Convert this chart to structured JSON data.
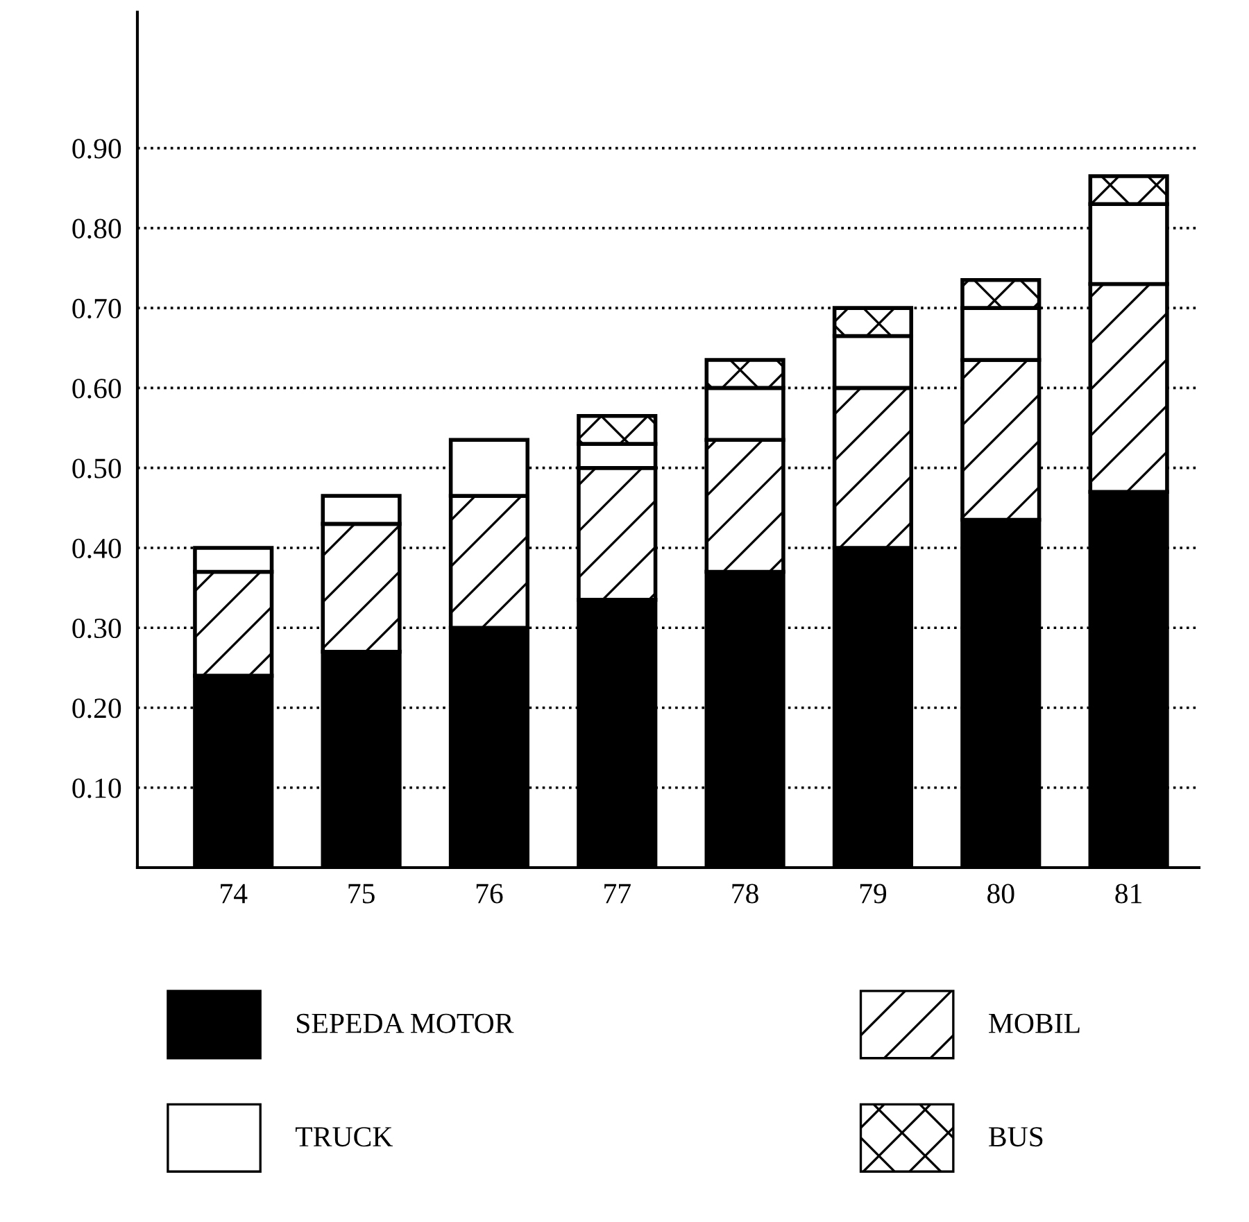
{
  "chart_data": {
    "type": "bar",
    "stacked": true,
    "categories": [
      "74",
      "75",
      "76",
      "77",
      "78",
      "79",
      "80",
      "81"
    ],
    "series": [
      {
        "name": "SEPEDA MOTOR",
        "color": "#000000",
        "values": [
          0.24,
          0.27,
          0.3,
          0.335,
          0.37,
          0.4,
          0.435,
          0.47
        ]
      },
      {
        "name": "MOBIL",
        "color": "#ffffff",
        "values": [
          0.13,
          0.16,
          0.165,
          0.165,
          0.165,
          0.2,
          0.2,
          0.26
        ]
      },
      {
        "name": "TRUCK",
        "color": "#ffffff",
        "values": [
          0.03,
          0.035,
          0.07,
          0.03,
          0.065,
          0.065,
          0.065,
          0.1
        ]
      },
      {
        "name": "BUS",
        "color": "#ffffff",
        "values": [
          null,
          null,
          null,
          0.035,
          0.035,
          0.035,
          0.035,
          0.035
        ]
      }
    ],
    "ylim": [
      0,
      1.07
    ],
    "yticks": [
      {
        "value": 0.1,
        "label": "0.10"
      },
      {
        "value": 0.2,
        "label": "0.20"
      },
      {
        "value": 0.3,
        "label": "0.30"
      },
      {
        "value": 0.4,
        "label": "0.40"
      },
      {
        "value": 0.5,
        "label": "0.50"
      },
      {
        "value": 0.6,
        "label": "0.60"
      },
      {
        "value": 0.7,
        "label": "0.70"
      },
      {
        "value": 0.8,
        "label": "0.80"
      },
      {
        "value": 0.9,
        "label": "0.90"
      }
    ],
    "grid": "y",
    "legend": "bottom"
  }
}
